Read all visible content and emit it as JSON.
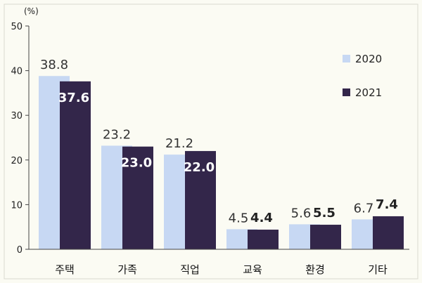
{
  "chart_data": {
    "type": "bar",
    "unit_label": "(%)",
    "categories": [
      "주택",
      "가족",
      "직업",
      "교육",
      "환경",
      "기타"
    ],
    "series": [
      {
        "name": "2020",
        "values": [
          38.8,
          23.2,
          21.2,
          4.5,
          5.6,
          6.7
        ],
        "color": "#c7d8f3"
      },
      {
        "name": "2021",
        "values": [
          37.6,
          23.0,
          22.0,
          4.4,
          5.5,
          7.4
        ],
        "color": "#33264a"
      }
    ],
    "data_labels": [
      [
        "38.8",
        "23.2",
        "21.2",
        "4.5",
        "5.6",
        "6.7"
      ],
      [
        "37.6",
        "23.0",
        "22.0",
        "4.4",
        "5.5",
        "7.4"
      ]
    ],
    "yticks": [
      "0",
      "10",
      "20",
      "30",
      "40",
      "50"
    ],
    "ylim": [
      0,
      50
    ],
    "legend_position": "right",
    "grid": false
  }
}
